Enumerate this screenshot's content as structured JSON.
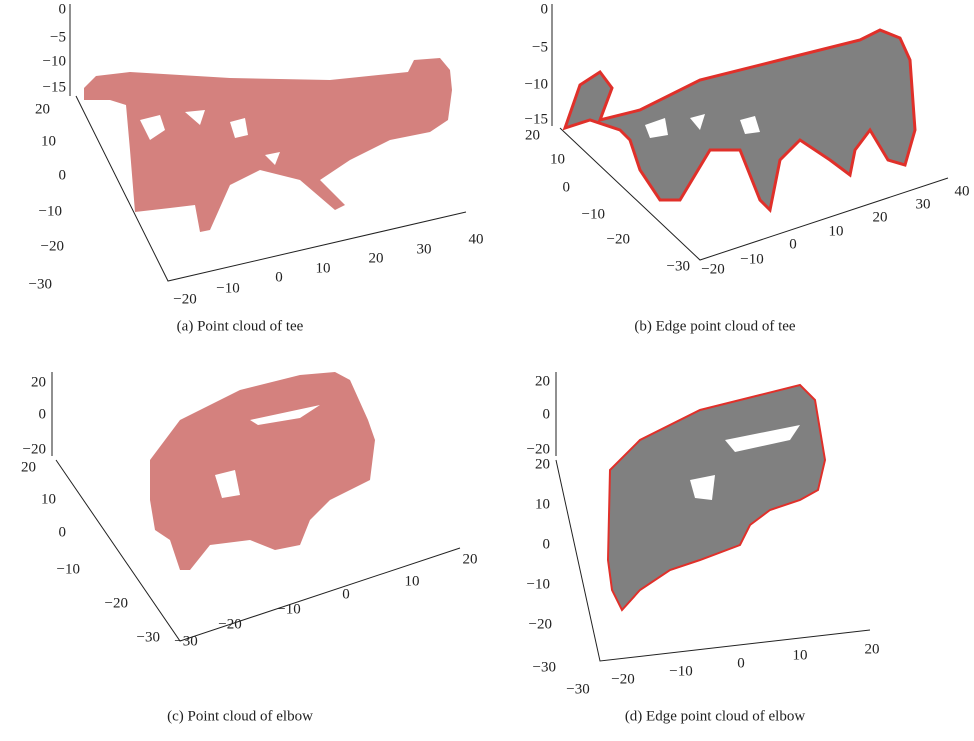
{
  "panels": [
    {
      "caption": "(a) Point cloud of tee",
      "z_ticks": [
        "0",
        "−5",
        "−10",
        "−15"
      ],
      "y_ticks": [
        "20",
        "10",
        "0",
        "−10",
        "−20",
        "−30"
      ],
      "x_ticks": [
        "−20",
        "−10",
        "0",
        "10",
        "20",
        "30",
        "40"
      ]
    },
    {
      "caption": "(b) Edge point cloud of tee",
      "z_ticks": [
        "0",
        "−5",
        "−10",
        "−15"
      ],
      "y_ticks": [
        "20",
        "10",
        "0",
        "−10",
        "−20",
        "−30"
      ],
      "x_ticks": [
        "−20",
        "−10",
        "0",
        "10",
        "20",
        "30",
        "40"
      ]
    },
    {
      "caption": "(c) Point cloud of elbow",
      "z_ticks": [
        "20",
        "0",
        "−20"
      ],
      "y_ticks": [
        "20",
        "10",
        "0",
        "−10",
        "−20",
        "−30"
      ],
      "x_ticks": [
        "−30",
        "−20",
        "−10",
        "0",
        "10",
        "20"
      ]
    },
    {
      "caption": "(d) Edge point cloud of elbow",
      "z_ticks": [
        "20",
        "0",
        "−20"
      ],
      "y_ticks": [
        "20",
        "10",
        "0",
        "−10",
        "−20",
        "−30"
      ],
      "x_ticks": [
        "−30",
        "−20",
        "−10",
        "0",
        "10",
        "20"
      ]
    }
  ]
}
